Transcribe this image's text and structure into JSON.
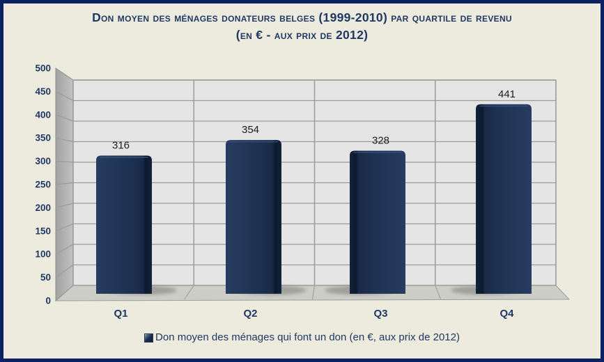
{
  "title": {
    "line1": "Don moyen des ménages donateurs belges (1999-2010) par quartile de revenu",
    "line2": "(en € - aux prix de 2012)"
  },
  "legend": {
    "label": "Don moyen des ménages qui font un don (en €, aux prix de 2012)"
  },
  "colors": {
    "frame_border": "#0a2163",
    "background": "#edebde",
    "title_text": "#1f3864",
    "axis_text": "#1f3864",
    "value_label_text": "#1c1c1c",
    "bar": "#1c2f4f",
    "bar_dark_edge": "#0c1930",
    "back_wall": "#e5e5e5",
    "side_wall": "#ababab",
    "floor": "#cdcdc7",
    "gridline": "#9b9b9b"
  },
  "chart_data": {
    "type": "bar",
    "style": "3d-column",
    "title": "Don moyen des ménages donateurs belges (1999-2010) par quartile de revenu (en € - aux prix de 2012)",
    "categories": [
      "Q1",
      "Q2",
      "Q3",
      "Q4"
    ],
    "series": [
      {
        "name": "Don moyen des ménages qui font un don (en €, aux prix de 2012)",
        "values": [
          316,
          354,
          328,
          441
        ]
      }
    ],
    "show_data_labels": true,
    "xlabel": "",
    "ylabel": "",
    "ylim": [
      0,
      500
    ],
    "ytick_step": 50,
    "yticks": [
      0,
      50,
      100,
      150,
      200,
      250,
      300,
      350,
      400,
      450,
      500
    ],
    "grid": true,
    "legend_position": "bottom"
  }
}
